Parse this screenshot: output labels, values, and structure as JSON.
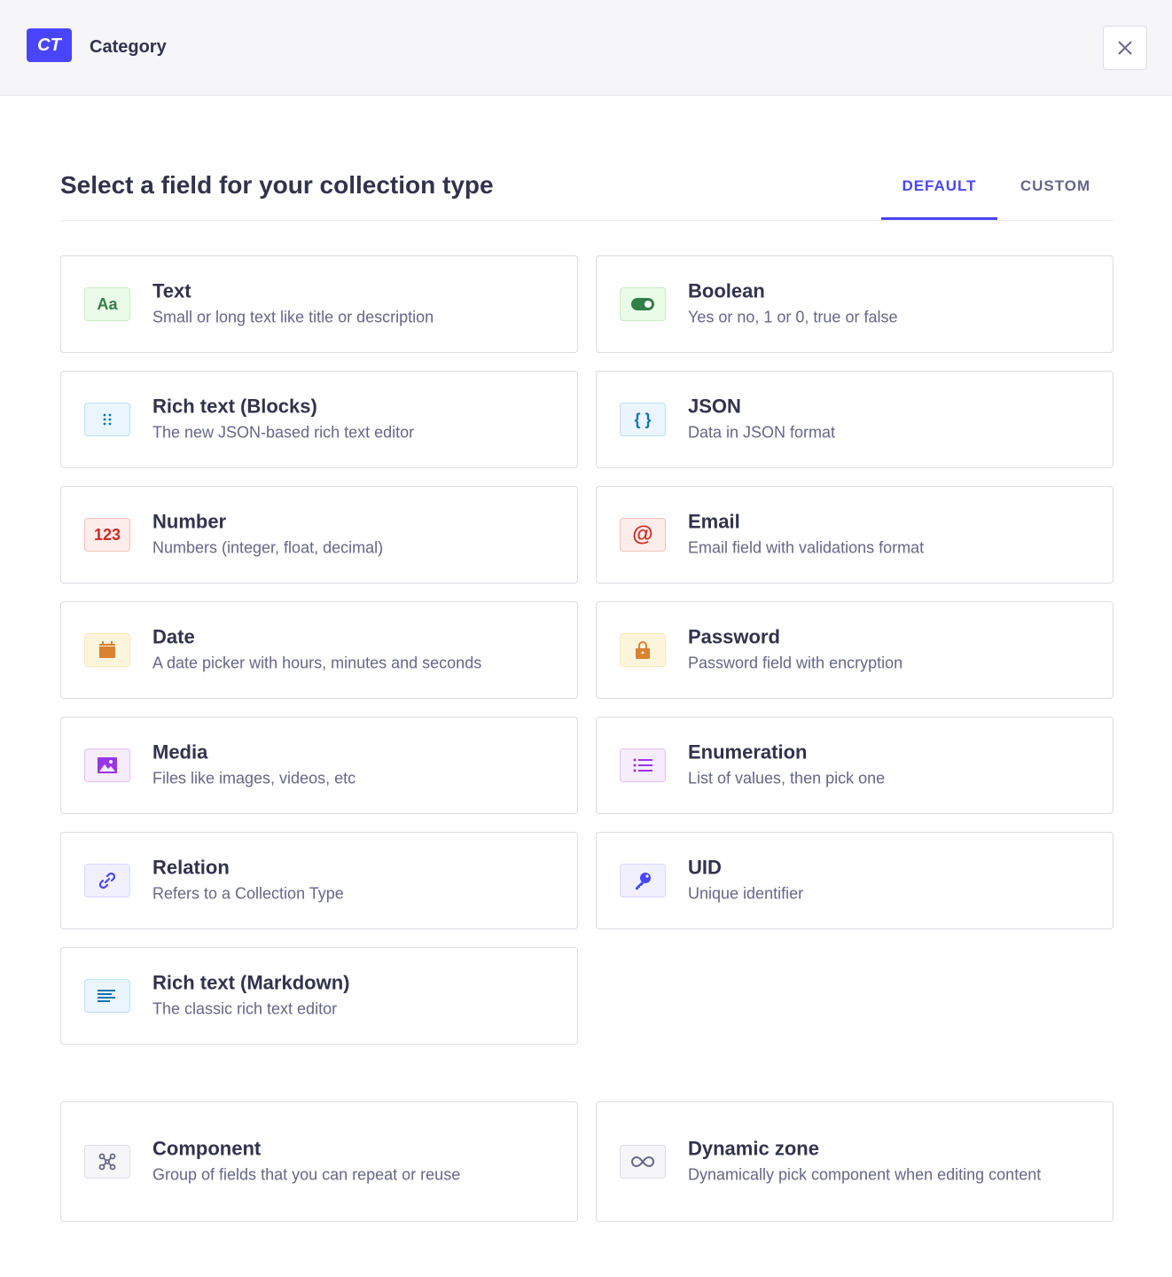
{
  "header": {
    "badge": "CT",
    "name": "Category"
  },
  "page": {
    "title": "Select a field for your collection type"
  },
  "tabs": [
    {
      "label": "DEFAULT",
      "active": true
    },
    {
      "label": "CUSTOM",
      "active": false
    }
  ],
  "fields": [
    {
      "title": "Text",
      "desc": "Small or long text like title or description",
      "icon": "text-icon",
      "glyph": "Aa"
    },
    {
      "title": "Boolean",
      "desc": "Yes or no, 1 or 0, true or false",
      "icon": "toggle-icon"
    },
    {
      "title": "Rich text (Blocks)",
      "desc": "The new JSON-based rich text editor",
      "icon": "drag-dots-icon"
    },
    {
      "title": "JSON",
      "desc": "Data in JSON format",
      "icon": "braces-icon",
      "glyph": "{ }"
    },
    {
      "title": "Number",
      "desc": "Numbers (integer, float, decimal)",
      "icon": "number-icon",
      "glyph": "123"
    },
    {
      "title": "Email",
      "desc": "Email field with validations format",
      "icon": "at-icon",
      "glyph": "@"
    },
    {
      "title": "Date",
      "desc": "A date picker with hours, minutes and seconds",
      "icon": "calendar-icon"
    },
    {
      "title": "Password",
      "desc": "Password field with encryption",
      "icon": "lock-icon"
    },
    {
      "title": "Media",
      "desc": "Files like images, videos, etc",
      "icon": "image-icon"
    },
    {
      "title": "Enumeration",
      "desc": "List of values, then pick one",
      "icon": "list-icon"
    },
    {
      "title": "Relation",
      "desc": "Refers to a Collection Type",
      "icon": "link-icon"
    },
    {
      "title": "UID",
      "desc": "Unique identifier",
      "icon": "key-icon"
    },
    {
      "title": "Rich text (Markdown)",
      "desc": "The classic rich text editor",
      "icon": "paragraph-icon"
    },
    {
      "title": "Component",
      "desc": "Group of fields that you can repeat or reuse",
      "icon": "component-icon"
    },
    {
      "title": "Dynamic zone",
      "desc": "Dynamically pick component when editing content",
      "icon": "infinity-icon"
    }
  ]
}
